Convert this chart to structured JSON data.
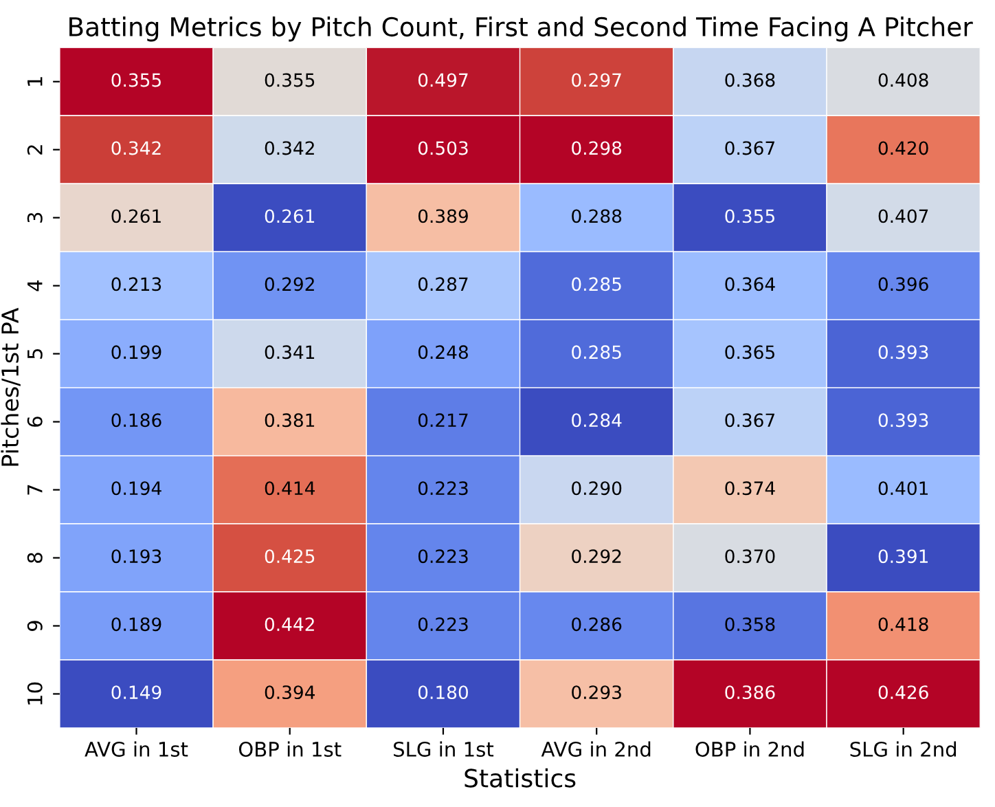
{
  "chart_data": {
    "type": "heatmap",
    "title": "Batting Metrics by Pitch Count, First and Second Time Facing A Pitcher",
    "xlabel": "Statistics",
    "ylabel": "Pitches/1st PA",
    "categories": [
      "AVG in 1st",
      "OBP in 1st",
      "SLG in 1st",
      "AVG in 2nd",
      "OBP in 2nd",
      "SLG in 2nd"
    ],
    "y_categories": [
      "1",
      "2",
      "3",
      "4",
      "5",
      "6",
      "7",
      "8",
      "9",
      "10"
    ],
    "cells": [
      [
        0.355,
        0.355,
        0.497,
        0.297,
        0.368,
        0.408
      ],
      [
        0.342,
        0.342,
        0.503,
        0.298,
        0.367,
        0.42
      ],
      [
        0.261,
        0.261,
        0.389,
        0.288,
        0.355,
        0.407
      ],
      [
        0.213,
        0.292,
        0.287,
        0.285,
        0.364,
        0.396
      ],
      [
        0.199,
        0.341,
        0.248,
        0.285,
        0.365,
        0.393
      ],
      [
        0.186,
        0.381,
        0.217,
        0.284,
        0.367,
        0.393
      ],
      [
        0.194,
        0.414,
        0.223,
        0.29,
        0.374,
        0.401
      ],
      [
        0.193,
        0.425,
        0.223,
        0.292,
        0.37,
        0.391
      ],
      [
        0.189,
        0.442,
        0.223,
        0.286,
        0.358,
        0.418
      ],
      [
        0.149,
        0.394,
        0.18,
        0.293,
        0.386,
        0.426
      ]
    ],
    "cell_labels": [
      [
        "0.355",
        "0.355",
        "0.497",
        "0.297",
        "0.368",
        "0.408"
      ],
      [
        "0.342",
        "0.342",
        "0.503",
        "0.298",
        "0.367",
        "0.420"
      ],
      [
        "0.261",
        "0.261",
        "0.389",
        "0.288",
        "0.355",
        "0.407"
      ],
      [
        "0.213",
        "0.292",
        "0.287",
        "0.285",
        "0.364",
        "0.396"
      ],
      [
        "0.199",
        "0.341",
        "0.248",
        "0.285",
        "0.365",
        "0.393"
      ],
      [
        "0.186",
        "0.381",
        "0.217",
        "0.284",
        "0.367",
        "0.393"
      ],
      [
        "0.194",
        "0.414",
        "0.223",
        "0.290",
        "0.374",
        "0.401"
      ],
      [
        "0.193",
        "0.425",
        "0.223",
        "0.292",
        "0.370",
        "0.391"
      ],
      [
        "0.189",
        "0.442",
        "0.223",
        "0.286",
        "0.358",
        "0.418"
      ],
      [
        "0.149",
        "0.394",
        "0.180",
        "0.293",
        "0.386",
        "0.426"
      ]
    ]
  }
}
